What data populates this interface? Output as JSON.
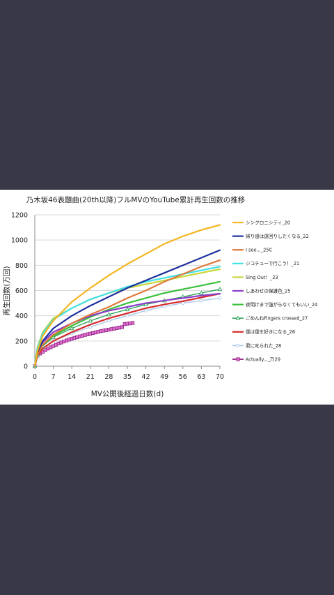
{
  "chart_data": {
    "type": "line",
    "title": "乃木坂46表題曲(20th以降)フルMVのYouTube累計再生回数の推移",
    "xlabel": "MV公開後経過日数(d)",
    "ylabel": "再生回数(万回)",
    "xlim": [
      0,
      70
    ],
    "ylim": [
      0,
      1200
    ],
    "x_ticks": [
      "0",
      "7",
      "14",
      "21",
      "28",
      "35",
      "42",
      "49",
      "56",
      "63",
      "70"
    ],
    "y_ticks": [
      "0",
      "200",
      "400",
      "600",
      "800",
      "1000",
      "1200"
    ],
    "grid": "horizontal",
    "legend_position": "right",
    "series": [
      {
        "name": "シンクロニシティ_20",
        "color": "#f2b51f",
        "width": 2.2,
        "marker": "none",
        "dash": "",
        "x": [
          0,
          1,
          3,
          7,
          14,
          21,
          28,
          35,
          42,
          49,
          56,
          63,
          70
        ],
        "y": [
          0,
          120,
          240,
          360,
          510,
          620,
          720,
          810,
          890,
          970,
          1030,
          1080,
          1120
        ]
      },
      {
        "name": "帰り道は遠回りしたくなる_22",
        "color": "#1e2f9c",
        "width": 2.2,
        "marker": "none",
        "dash": "",
        "x": [
          0,
          1,
          3,
          7,
          14,
          21,
          28,
          35,
          42,
          49,
          56,
          63,
          70
        ],
        "y": [
          0,
          110,
          200,
          300,
          400,
          480,
          550,
          620,
          680,
          740,
          800,
          860,
          920
        ]
      },
      {
        "name": "I see..._25C",
        "color": "#e0793a",
        "width": 2.2,
        "marker": "none",
        "dash": "",
        "x": [
          0,
          1,
          3,
          7,
          14,
          21,
          28,
          35,
          42,
          49,
          56,
          63,
          70
        ],
        "y": [
          0,
          90,
          170,
          250,
          340,
          410,
          470,
          540,
          600,
          670,
          730,
          790,
          840
        ]
      },
      {
        "name": "ジコチューで行こう！_21",
        "color": "#3fe0e4",
        "width": 2.2,
        "marker": "none",
        "dash": "",
        "x": [
          0,
          1,
          3,
          7,
          14,
          21,
          28,
          35,
          42,
          49,
          56,
          63,
          70
        ],
        "y": [
          0,
          140,
          260,
          370,
          460,
          530,
          580,
          630,
          670,
          700,
          730,
          760,
          790
        ]
      },
      {
        "name": "Sing Out！_23",
        "color": "#c9d63a",
        "width": 2.2,
        "marker": "none",
        "dash": "",
        "x": [
          0,
          1,
          3,
          7,
          14,
          21,
          28,
          35,
          42,
          49,
          56,
          63,
          70
        ],
        "y": [
          0,
          150,
          270,
          380,
          460,
          530,
          580,
          620,
          650,
          680,
          710,
          740,
          770
        ]
      },
      {
        "name": "しあわせの保護色_25",
        "color": "#8a3fc9",
        "width": 2.2,
        "marker": "none",
        "dash": "",
        "x": [
          0,
          1,
          3,
          7,
          14,
          21,
          28,
          35,
          42,
          49,
          56,
          63,
          70
        ],
        "y": [
          0,
          100,
          190,
          270,
          340,
          400,
          440,
          470,
          500,
          520,
          540,
          560,
          575
        ]
      },
      {
        "name": "夜明けまで強がらなくてもいい_24",
        "color": "#3cbf3c",
        "width": 2.2,
        "marker": "none",
        "dash": "",
        "x": [
          0,
          1,
          3,
          7,
          14,
          21,
          28,
          35,
          42,
          49,
          56,
          63,
          70
        ],
        "y": [
          0,
          100,
          170,
          240,
          320,
          390,
          450,
          500,
          540,
          580,
          610,
          640,
          670
        ]
      },
      {
        "name": "ごめんねFingers crossed_27",
        "color": "#2fa35a",
        "width": 1.4,
        "marker": "triangle",
        "dash": "",
        "x": [
          0,
          1,
          3,
          7,
          14,
          21,
          28,
          35,
          42,
          49,
          56,
          63,
          70
        ],
        "y": [
          0,
          90,
          160,
          230,
          300,
          360,
          410,
          450,
          490,
          520,
          550,
          580,
          610
        ]
      },
      {
        "name": "僕は僕を好きになる_26",
        "color": "#d62b2b",
        "width": 2.2,
        "marker": "none",
        "dash": "",
        "x": [
          0,
          1,
          3,
          7,
          14,
          21,
          28,
          35,
          42,
          49,
          56,
          63,
          70
        ],
        "y": [
          0,
          80,
          140,
          200,
          270,
          330,
          380,
          420,
          460,
          490,
          515,
          545,
          575
        ]
      },
      {
        "name": "君に叱られた_28",
        "color": "#a8c8e8",
        "width": 1.4,
        "marker": "circle",
        "dash": "",
        "x": [
          0,
          1,
          3,
          7,
          14,
          21,
          28,
          35,
          42,
          49,
          56,
          63,
          70
        ],
        "y": [
          0,
          75,
          140,
          200,
          260,
          310,
          360,
          400,
          440,
          475,
          500,
          520,
          540
        ]
      },
      {
        "name": "Actually..._乃29",
        "color": "#8e2080",
        "width": 1.8,
        "marker": "square",
        "dash": "",
        "x": [
          0,
          1,
          2,
          3,
          4,
          5,
          6,
          7,
          8,
          9,
          10,
          11,
          12,
          13,
          14,
          15,
          16,
          17,
          18,
          19,
          20,
          21,
          22,
          23,
          24,
          25,
          26,
          27,
          28,
          29,
          30,
          31,
          32,
          33,
          34,
          35,
          36,
          37
        ],
        "y": [
          0,
          80,
          100,
          115,
          128,
          140,
          150,
          160,
          170,
          180,
          188,
          196,
          204,
          211,
          218,
          224,
          230,
          236,
          242,
          248,
          253,
          258,
          263,
          268,
          273,
          278,
          282,
          286,
          290,
          294,
          298,
          302,
          306,
          310,
          334,
          337,
          340,
          343
        ]
      }
    ]
  }
}
